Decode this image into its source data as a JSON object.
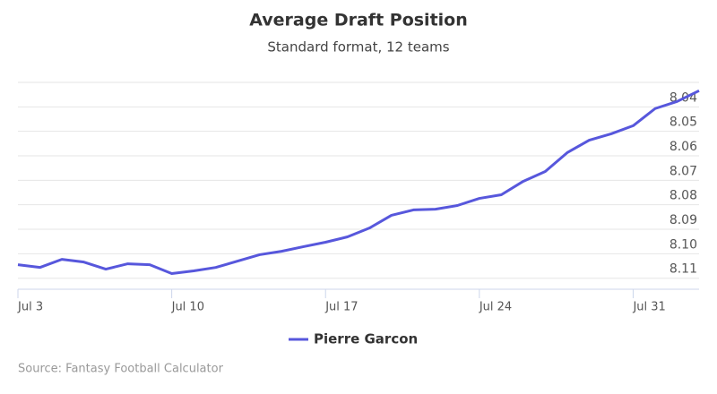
{
  "chart_data": {
    "type": "line",
    "title": "Average Draft Position",
    "subtitle": "Standard format, 12 teams",
    "categories": [
      "Jul 3",
      null,
      null,
      null,
      null,
      null,
      null,
      "Jul 10",
      null,
      null,
      null,
      null,
      null,
      null,
      "Jul 17",
      null,
      null,
      null,
      null,
      null,
      null,
      "Jul 24",
      null,
      null,
      null,
      null,
      null,
      null,
      "Jul 31",
      null,
      null,
      null
    ],
    "series": [
      {
        "name": "Pierre Garcon",
        "color": "#5757dc",
        "values": [
          8.1045,
          8.1056,
          8.1023,
          8.1034,
          8.1063,
          8.1041,
          8.1045,
          8.1081,
          8.107,
          8.1056,
          8.103,
          8.1004,
          8.099,
          8.0971,
          8.0953,
          8.0931,
          8.0895,
          8.0843,
          8.0821,
          8.0818,
          8.0803,
          8.0774,
          8.0759,
          8.0704,
          8.0664,
          8.0587,
          8.0536,
          8.051,
          8.0477,
          8.0407,
          8.0378,
          8.0334
        ]
      }
    ],
    "ylim": [
      8.1145,
      8.03
    ],
    "yticks": [
      8.04,
      8.05,
      8.06,
      8.07,
      8.08,
      8.09,
      {
        "value": 8.1,
        "label": "8.10"
      },
      8.11
    ],
    "grid": true,
    "legend": "bottom",
    "source": "Source: Fantasy Football Calculator"
  }
}
